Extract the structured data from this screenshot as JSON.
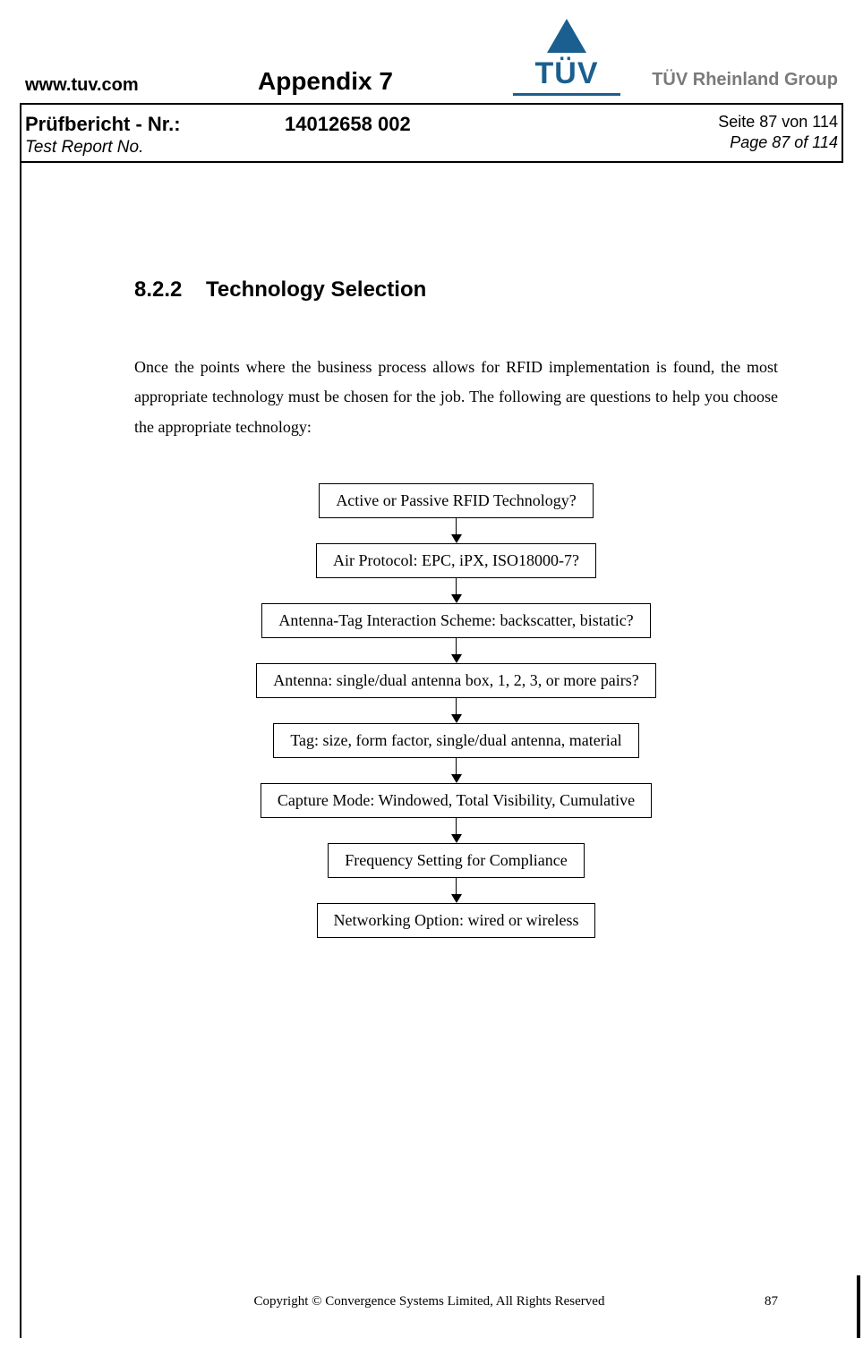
{
  "header": {
    "url": "www.tuv.com",
    "appendix": "Appendix 7",
    "logo_text": "TÜV",
    "logo_color": "#1a5f8f",
    "group_text": "TÜV Rheinland Group"
  },
  "report": {
    "label_de": "Prüfbericht - Nr.:",
    "label_en": "Test Report No.",
    "number": "14012658 002",
    "page_de": "Seite 87 von 114",
    "page_en": "Page 87 of 114"
  },
  "section": {
    "number": "8.2.2",
    "title": "Technology Selection",
    "paragraph": "Once the points where the business process allows for RFID implementation is found, the most appropriate technology must be chosen for the job.  The following are questions to help you choose the appropriate technology:"
  },
  "flowchart": {
    "type": "flowchart",
    "node_border_color": "#000000",
    "node_bg_color": "#ffffff",
    "node_font_family": "Times New Roman",
    "node_font_size_pt": 14,
    "arrow_color": "#000000",
    "nodes": [
      "Active or Passive RFID Technology?",
      "Air Protocol: EPC, iPX, ISO18000-7?",
      "Antenna-Tag Interaction Scheme: backscatter, bistatic?",
      "Antenna: single/dual antenna box, 1, 2, 3, or more pairs?",
      "Tag: size, form factor, single/dual antenna, material",
      "Capture Mode: Windowed, Total Visibility, Cumulative",
      "Frequency Setting for Compliance",
      "Networking Option: wired or wireless"
    ]
  },
  "footer": {
    "copyright": "Copyright © Convergence Systems Limited, All Rights Reserved",
    "page_number": "87"
  },
  "colors": {
    "text": "#000000",
    "background": "#ffffff",
    "rule": "#000000",
    "group_text": "#7a7a7a"
  }
}
